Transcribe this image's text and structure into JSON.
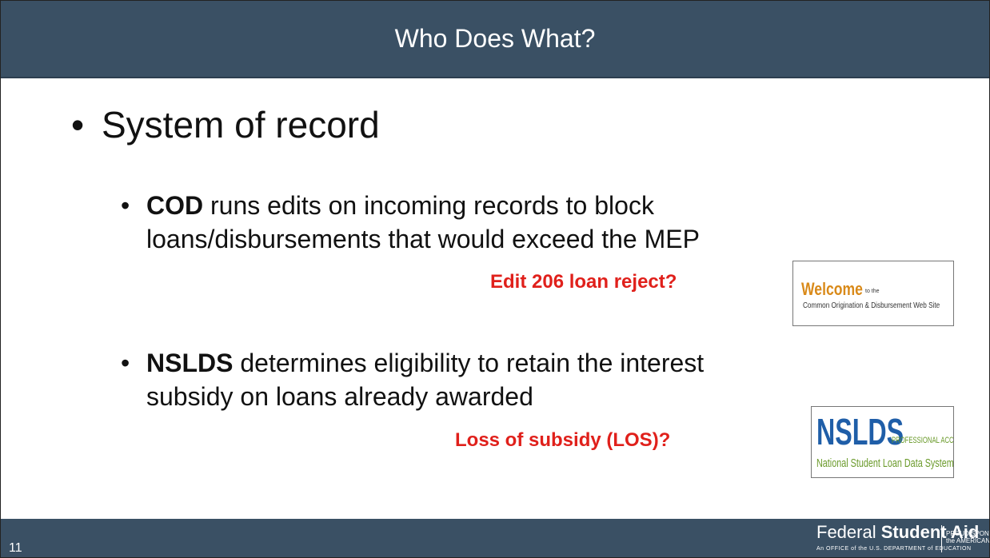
{
  "header": {
    "title": "Who Does What?"
  },
  "content": {
    "bullet": "System of record",
    "sub_bullets": [
      {
        "bold": "COD",
        "text": " runs edits on incoming records to block loans/disbursements that would exceed the MEP",
        "note": "Edit 206 loan reject?",
        "logo": {
          "title": "Welcome",
          "small": "to the",
          "subtitle": "Common Origination & Disbursement Web Site"
        }
      },
      {
        "bold": "NSLDS",
        "text": " determines eligibility to retain the interest subsidy on loans already awarded",
        "note": "Loss of subsidy (LOS)?",
        "logo": {
          "title": "NSLDS",
          "small": "PROFESSIONAL ACCESS",
          "subtitle": "National Student Loan Data System"
        }
      }
    ]
  },
  "footer": {
    "page_number": "11",
    "brand_regular": "Federal",
    "brand_bold": "Student Aid",
    "brand_tagline": "An OFFICE of the U.S. DEPARTMENT of EDUCATION",
    "sponsor_line1": "PROUD SPONSOR of",
    "sponsor_line2": "the AMERICAN MIND®"
  }
}
